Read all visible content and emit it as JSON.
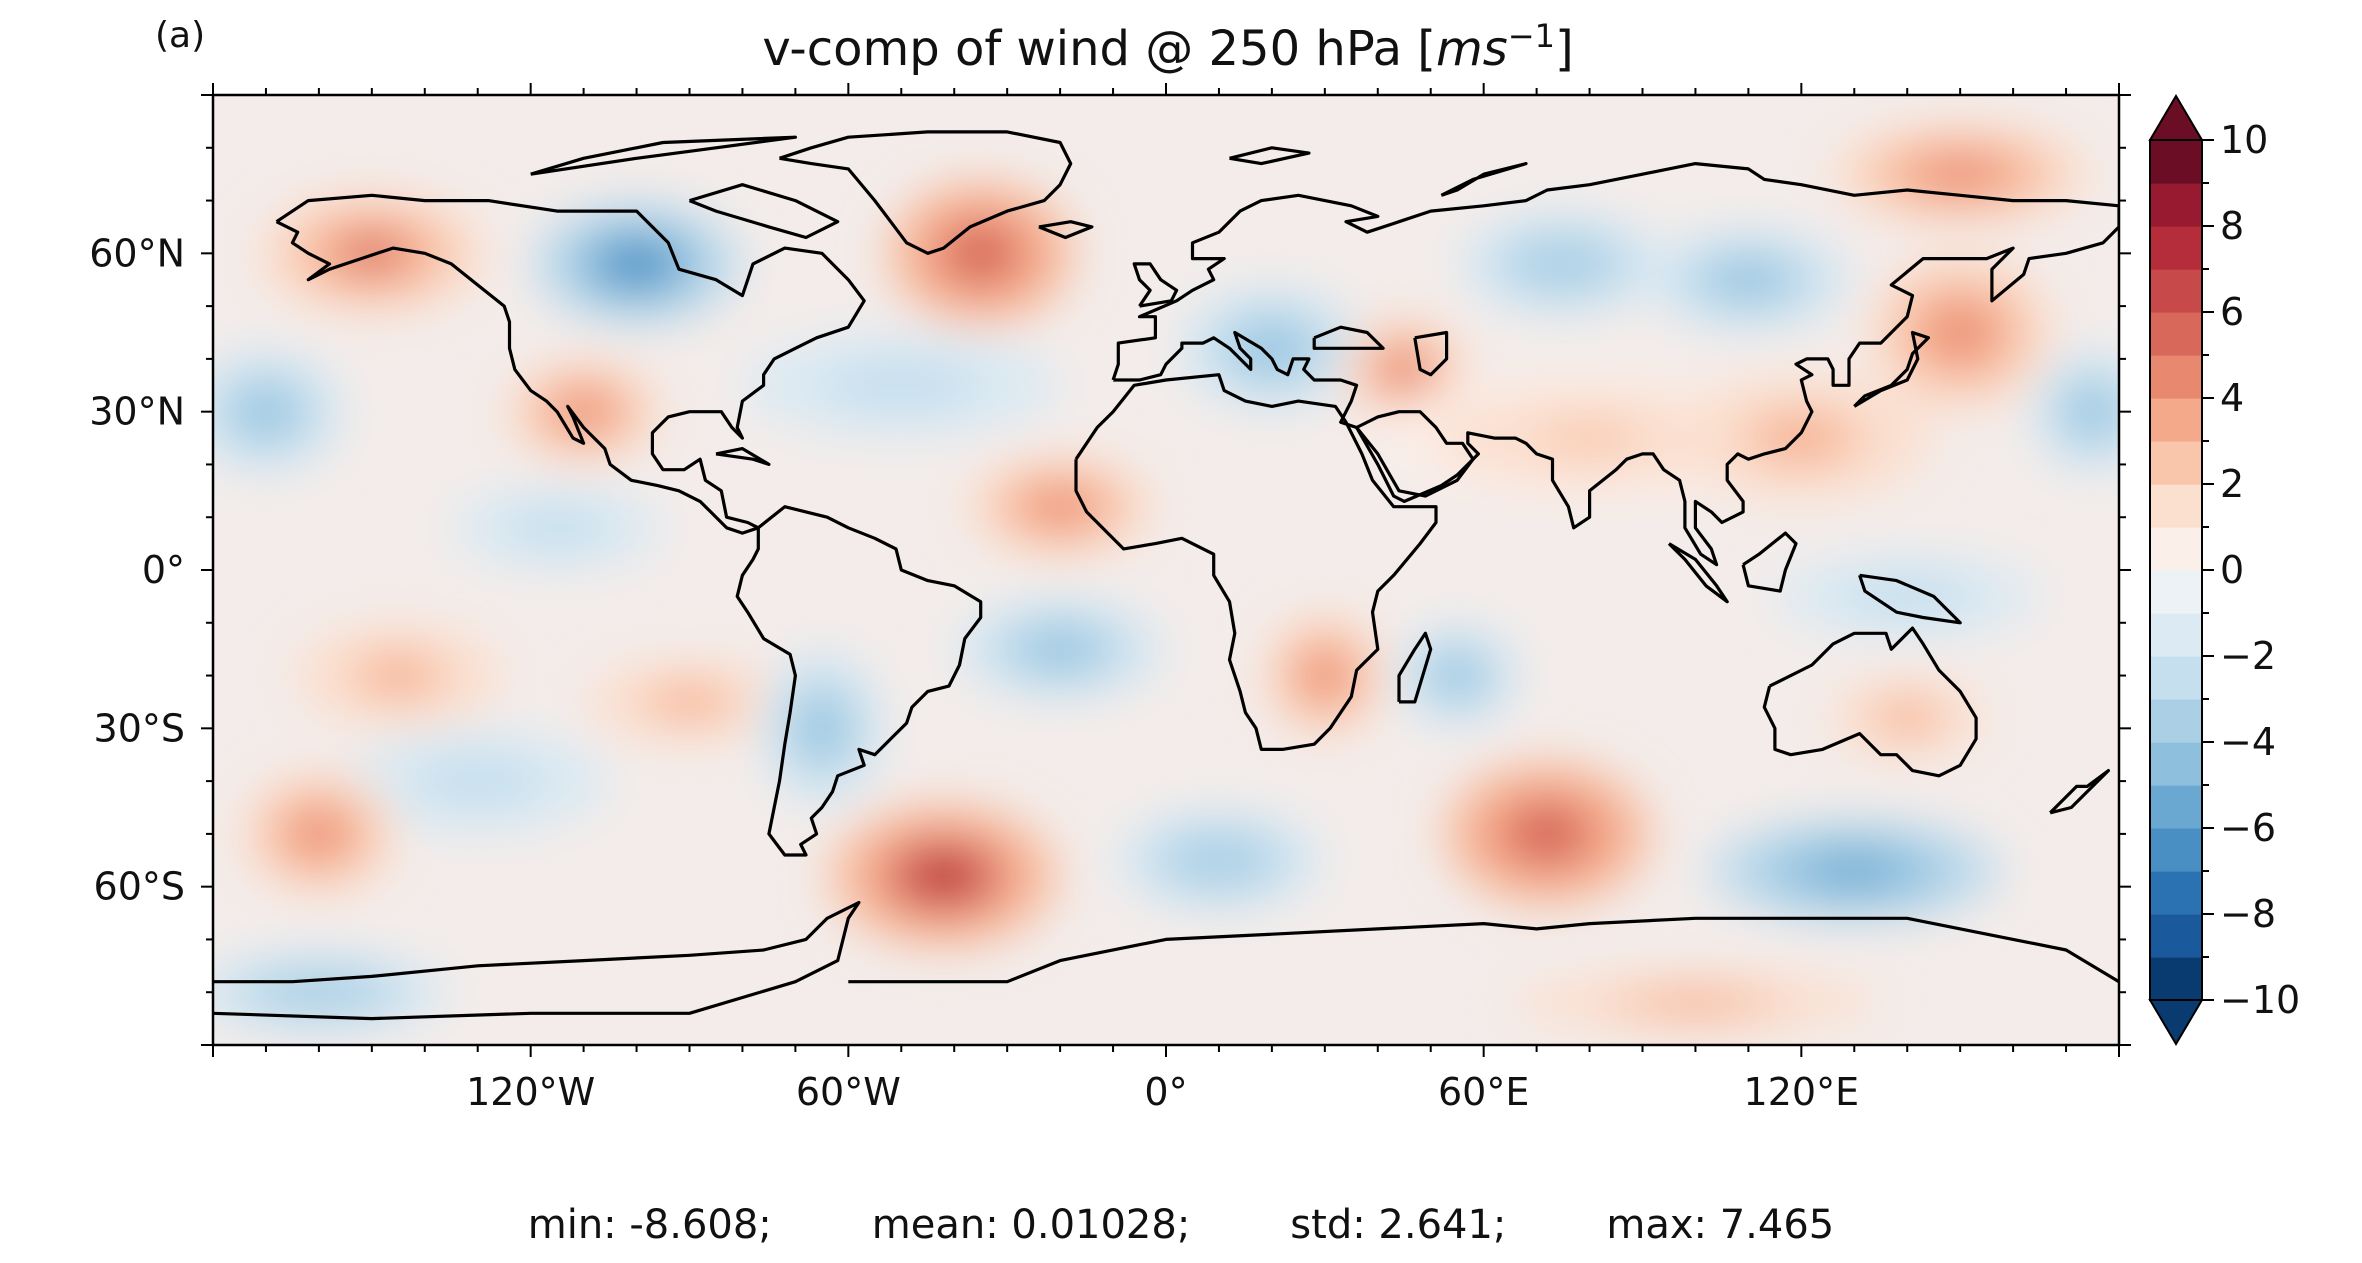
{
  "panel_label": "(a)",
  "title": {
    "main": "v-comp of wind @ 250 hPa [",
    "unit_base": "ms",
    "unit_exp": "−1",
    "close": "]"
  },
  "map": {
    "lon_ticks": [
      {
        "lon": -120,
        "label": "120°W"
      },
      {
        "lon": -60,
        "label": "60°W"
      },
      {
        "lon": 0,
        "label": "0°"
      },
      {
        "lon": 60,
        "label": "60°E"
      },
      {
        "lon": 120,
        "label": "120°E"
      }
    ],
    "lat_ticks": [
      {
        "lat": 60,
        "label": "60°N"
      },
      {
        "lat": 30,
        "label": "30°N"
      },
      {
        "lat": 0,
        "label": "0°"
      },
      {
        "lat": -30,
        "label": "30°S"
      },
      {
        "lat": -60,
        "label": "60°S"
      }
    ],
    "colorbar": {
      "min": -10,
      "max": 10,
      "step": 1,
      "extend": "both",
      "ticks": [
        {
          "value": 10,
          "label": "10"
        },
        {
          "value": 8,
          "label": "8"
        },
        {
          "value": 6,
          "label": "6"
        },
        {
          "value": 4,
          "label": "4"
        },
        {
          "value": 2,
          "label": "2"
        },
        {
          "value": 0,
          "label": "0"
        },
        {
          "value": -2,
          "label": "−2"
        },
        {
          "value": -4,
          "label": "−4"
        },
        {
          "value": -6,
          "label": "−6"
        },
        {
          "value": -8,
          "label": "−8"
        },
        {
          "value": -10,
          "label": "−10"
        }
      ],
      "colors": [
        "#0a3b70",
        "#1a5a9c",
        "#2b72b2",
        "#4a8fc3",
        "#6aa7d1",
        "#8ec0de",
        "#abd0e6",
        "#c6dfee",
        "#dbeaf3",
        "#ecf2f6",
        "#fbefea",
        "#fbe0d0",
        "#f9c6ab",
        "#f4a98a",
        "#e8896f",
        "#d7685a",
        "#c8494a",
        "#b52d3a",
        "#981a30",
        "#6b0d24"
      ]
    },
    "anomalies": [
      {
        "lon": -150,
        "lat": 60,
        "v": 5,
        "rx": 22,
        "ry": 12
      },
      {
        "lon": -100,
        "lat": 58,
        "v": -7,
        "rx": 20,
        "ry": 12
      },
      {
        "lon": -35,
        "lat": 60,
        "v": 6,
        "rx": 18,
        "ry": 14
      },
      {
        "lon": 20,
        "lat": 42,
        "v": -5,
        "rx": 18,
        "ry": 12
      },
      {
        "lon": 45,
        "lat": 38,
        "v": 5,
        "rx": 12,
        "ry": 10
      },
      {
        "lon": 75,
        "lat": 58,
        "v": -4,
        "rx": 20,
        "ry": 10
      },
      {
        "lon": 110,
        "lat": 55,
        "v": -5,
        "rx": 20,
        "ry": 10
      },
      {
        "lon": 150,
        "lat": 75,
        "v": 4,
        "rx": 25,
        "ry": 10
      },
      {
        "lon": 150,
        "lat": 45,
        "v": 4,
        "rx": 18,
        "ry": 15
      },
      {
        "lon": -170,
        "lat": 30,
        "v": -5,
        "rx": 15,
        "ry": 12
      },
      {
        "lon": 175,
        "lat": 30,
        "v": -5,
        "rx": 12,
        "ry": 12
      },
      {
        "lon": -110,
        "lat": 30,
        "v": 4,
        "rx": 15,
        "ry": 10
      },
      {
        "lon": -50,
        "lat": 35,
        "v": -3,
        "rx": 30,
        "ry": 10
      },
      {
        "lon": -20,
        "lat": 12,
        "v": 4,
        "rx": 18,
        "ry": 10
      },
      {
        "lon": 80,
        "lat": 25,
        "v": 2,
        "rx": 40,
        "ry": 12
      },
      {
        "lon": 120,
        "lat": 25,
        "v": 3,
        "rx": 25,
        "ry": 12
      },
      {
        "lon": -115,
        "lat": 8,
        "v": -3,
        "rx": 20,
        "ry": 8
      },
      {
        "lon": 140,
        "lat": -5,
        "v": -3,
        "rx": 25,
        "ry": 8
      },
      {
        "lon": -20,
        "lat": -15,
        "v": -5,
        "rx": 20,
        "ry": 10
      },
      {
        "lon": 30,
        "lat": -20,
        "v": 4,
        "rx": 12,
        "ry": 12
      },
      {
        "lon": 55,
        "lat": -20,
        "v": -5,
        "rx": 12,
        "ry": 10
      },
      {
        "lon": -145,
        "lat": -20,
        "v": 3,
        "rx": 20,
        "ry": 10
      },
      {
        "lon": -90,
        "lat": -25,
        "v": 3,
        "rx": 20,
        "ry": 8
      },
      {
        "lon": -65,
        "lat": -30,
        "v": -5,
        "rx": 12,
        "ry": 15
      },
      {
        "lon": -130,
        "lat": -40,
        "v": -3,
        "rx": 25,
        "ry": 10
      },
      {
        "lon": -160,
        "lat": -50,
        "v": 4,
        "rx": 15,
        "ry": 12
      },
      {
        "lon": -42,
        "lat": -58,
        "v": 7,
        "rx": 22,
        "ry": 14
      },
      {
        "lon": 10,
        "lat": -55,
        "v": -4,
        "rx": 20,
        "ry": 10
      },
      {
        "lon": 72,
        "lat": -50,
        "v": 6,
        "rx": 20,
        "ry": 14
      },
      {
        "lon": 130,
        "lat": -57,
        "v": -6,
        "rx": 28,
        "ry": 10
      },
      {
        "lon": 140,
        "lat": -28,
        "v": 3,
        "rx": 15,
        "ry": 8
      },
      {
        "lon": -160,
        "lat": -80,
        "v": -4,
        "rx": 25,
        "ry": 8
      },
      {
        "lon": 100,
        "lat": -82,
        "v": 3,
        "rx": 35,
        "ry": 6
      }
    ]
  },
  "stats": {
    "min": "min: -8.608;",
    "mean": "mean: 0.01028;",
    "std": "std: 2.641;",
    "max": "max: 7.465"
  }
}
